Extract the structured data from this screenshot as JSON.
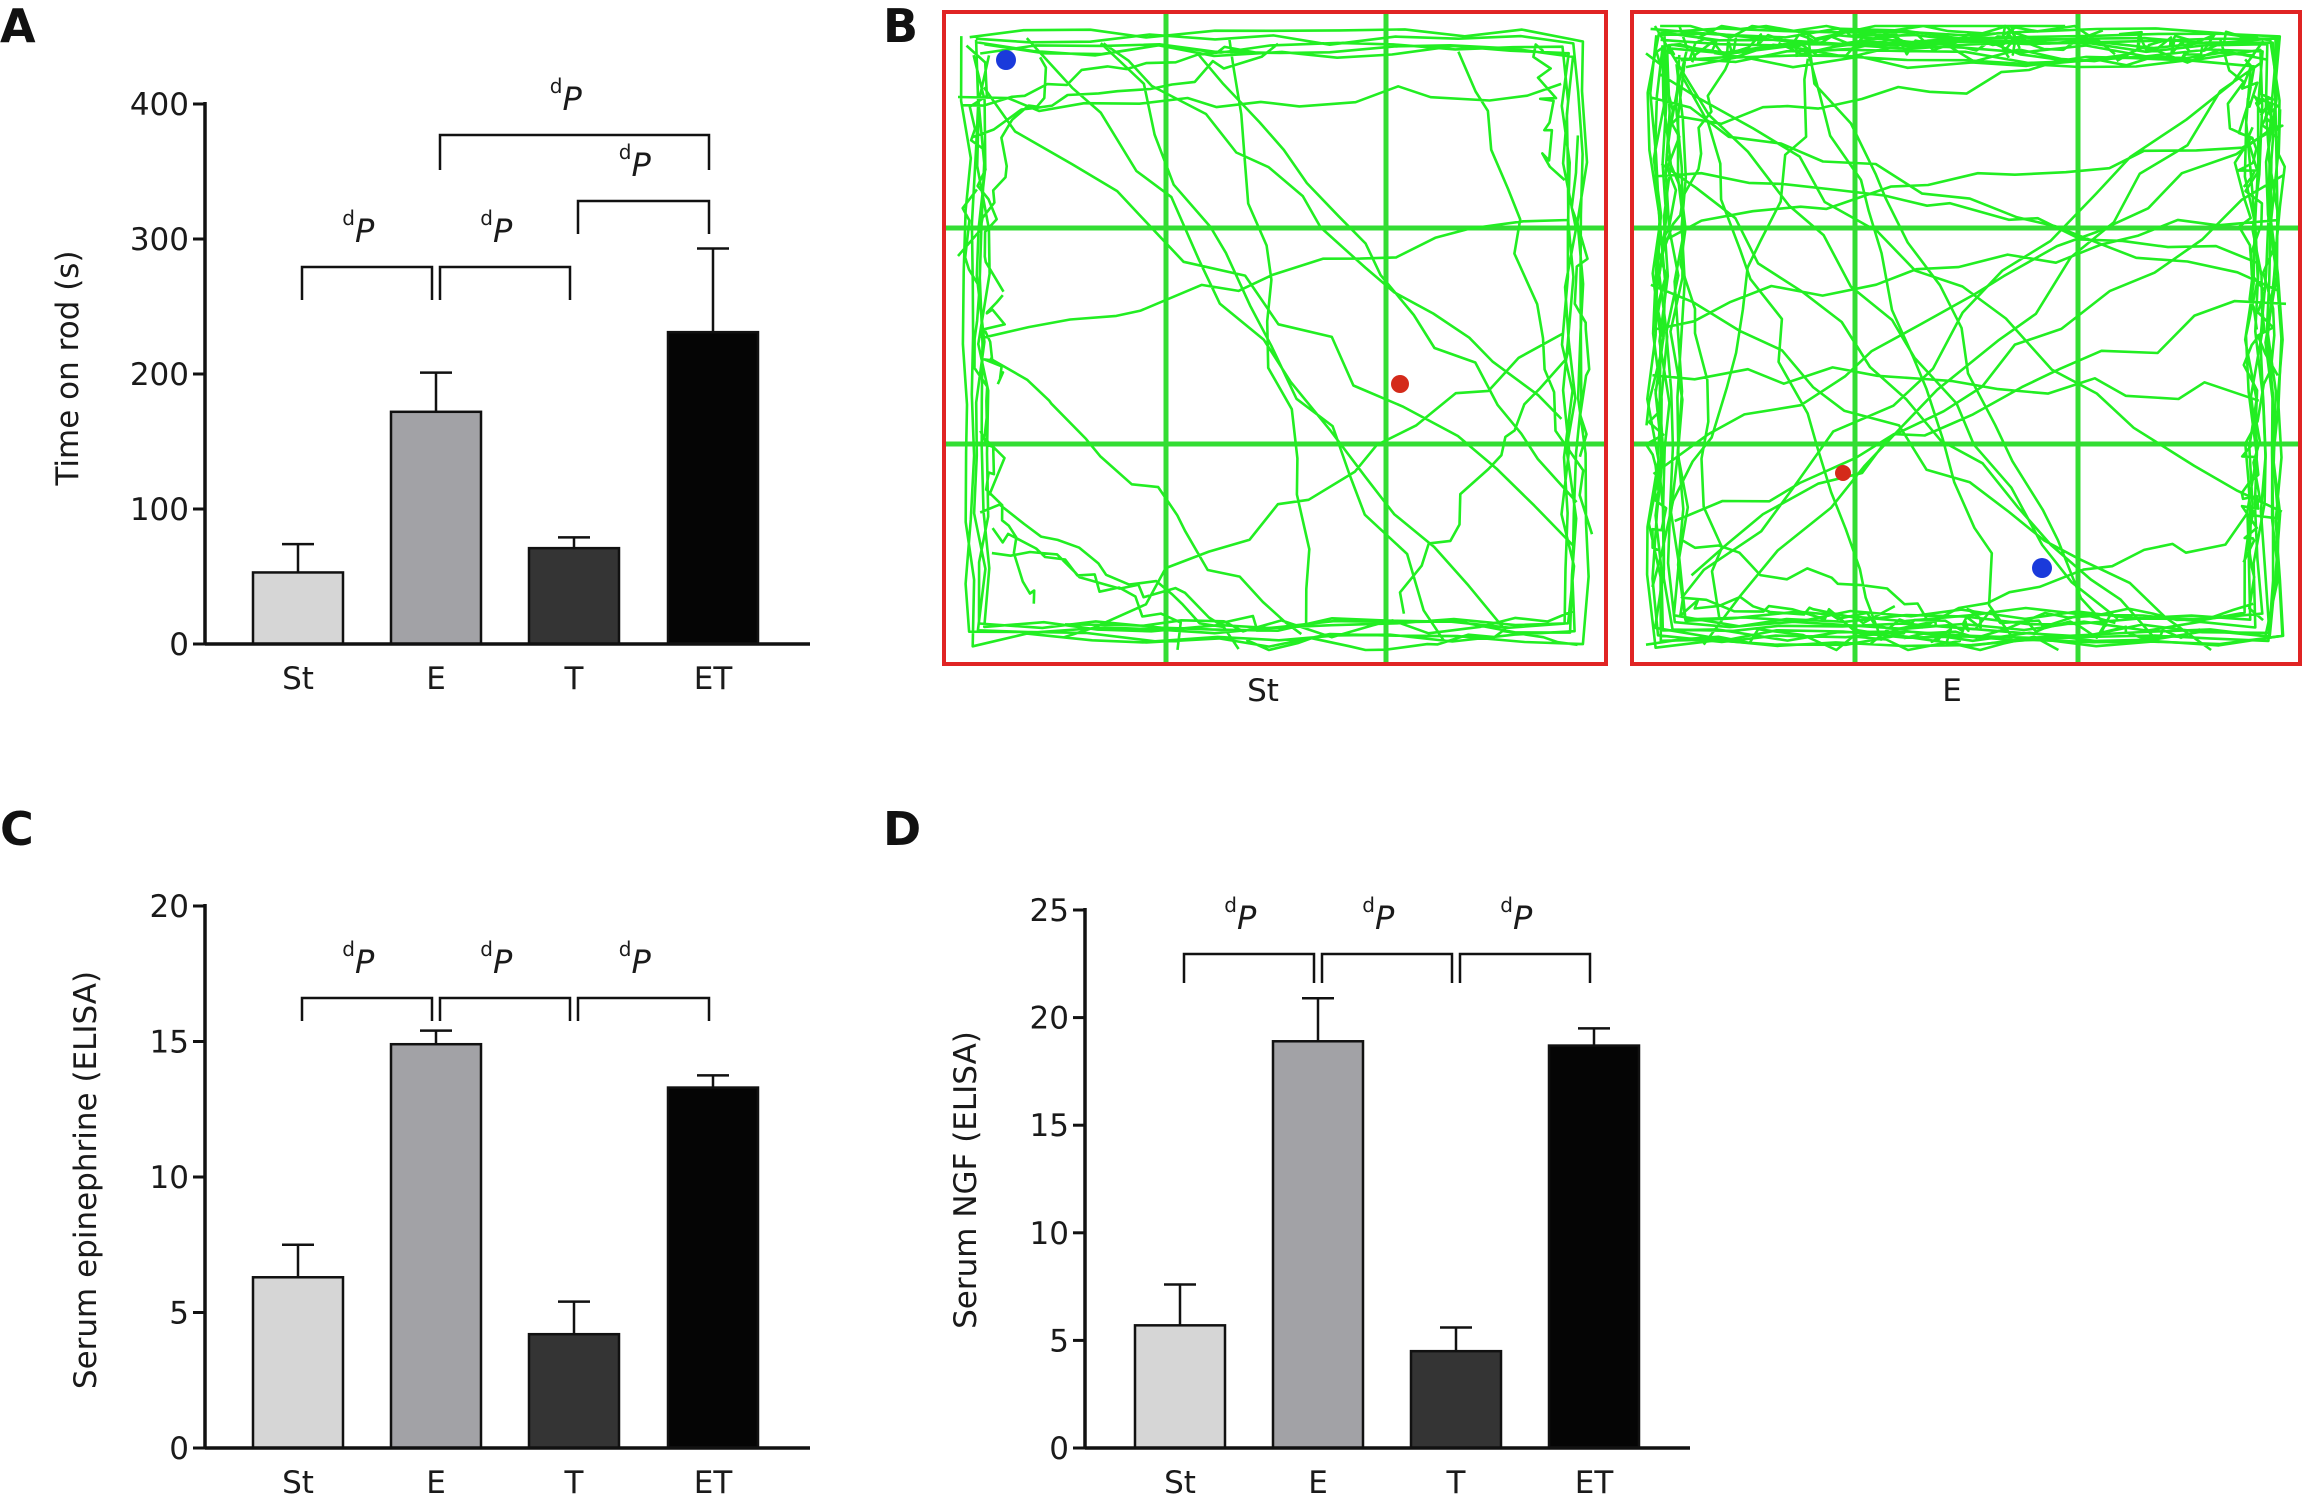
{
  "panels": [
    {
      "label": "A"
    },
    {
      "label": "B"
    },
    {
      "label": "C"
    },
    {
      "label": "D"
    }
  ],
  "significance_label": {
    "sup": "d",
    "main": "P"
  },
  "chart_data": [
    {
      "panel": "A",
      "type": "bar",
      "categories": [
        "St",
        "E",
        "T",
        "ET"
      ],
      "values": [
        53,
        172,
        71,
        231
      ],
      "errors": [
        21,
        29,
        8,
        62
      ],
      "ylabel": "Time on rod (s)",
      "ylim": [
        0,
        400
      ],
      "yticks": [
        0,
        100,
        200,
        300,
        400
      ],
      "bar_colors": [
        "#d6d6d6",
        "#a2a2a6",
        "#343434",
        "#050505"
      ],
      "comparisons": [
        [
          0,
          1
        ],
        [
          1,
          2
        ],
        [
          2,
          3
        ],
        [
          1,
          3
        ]
      ]
    },
    {
      "panel": "C",
      "type": "bar",
      "categories": [
        "St",
        "E",
        "T",
        "ET"
      ],
      "values": [
        6.3,
        14.9,
        4.2,
        13.3
      ],
      "errors": [
        1.2,
        0.5,
        1.2,
        0.45
      ],
      "ylabel": "Serum epinephrine (ELISA)",
      "ylim": [
        0,
        20
      ],
      "yticks": [
        0,
        5,
        10,
        15,
        20
      ],
      "bar_colors": [
        "#d6d6d6",
        "#a2a2a6",
        "#343434",
        "#050505"
      ],
      "comparisons": [
        [
          0,
          1
        ],
        [
          1,
          2
        ],
        [
          2,
          3
        ]
      ]
    },
    {
      "panel": "D",
      "type": "bar",
      "categories": [
        "St",
        "E",
        "T",
        "ET"
      ],
      "values": [
        5.7,
        18.9,
        4.5,
        18.7
      ],
      "errors": [
        1.9,
        2.0,
        1.1,
        0.8
      ],
      "ylabel": "Serum NGF (ELISA)",
      "ylim": [
        0,
        25
      ],
      "yticks": [
        0,
        5,
        10,
        15,
        20,
        25
      ],
      "bar_colors": [
        "#d6d6d6",
        "#a2a2a6",
        "#343434",
        "#050505"
      ],
      "comparisons": [
        [
          0,
          1
        ],
        [
          1,
          2
        ],
        [
          2,
          3
        ]
      ]
    }
  ],
  "tracking": {
    "panel": "B",
    "arenas": [
      {
        "caption": "St",
        "start_marker": "blue-dot",
        "end_marker": "red-dot"
      },
      {
        "caption": "E",
        "start_marker": "blue-dot",
        "end_marker": "red-dot"
      }
    ],
    "colors": {
      "frame": "#e02424",
      "grid": "#33dd33",
      "path": "#22ee22",
      "start": "#1a3adb",
      "end": "#d42a1a"
    }
  }
}
